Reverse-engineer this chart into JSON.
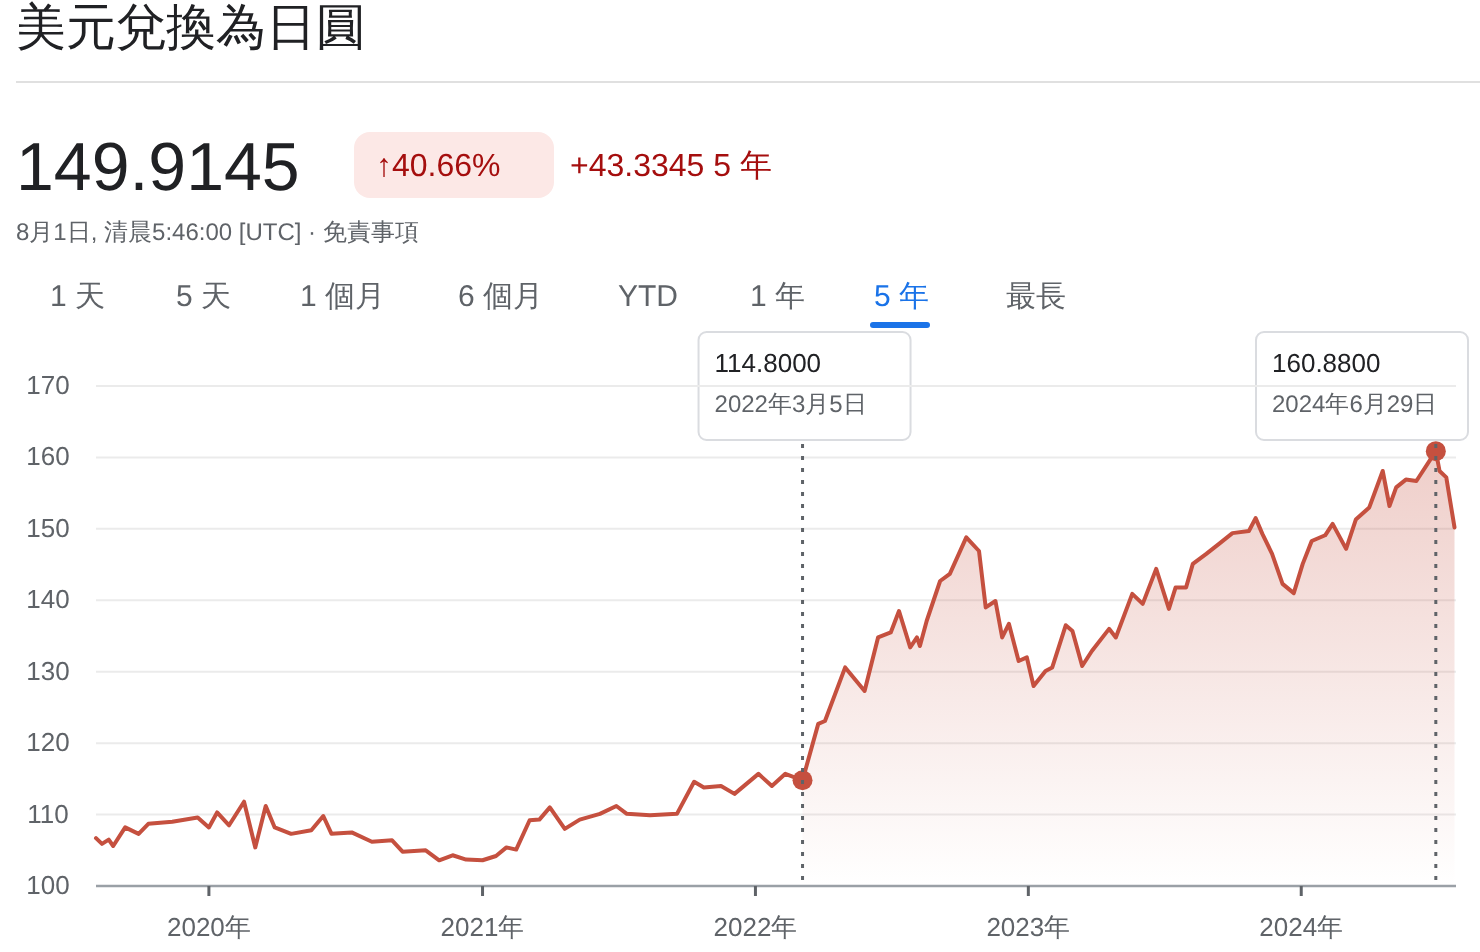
{
  "chart_data": {
    "type": "line",
    "title": "美元兌換為日圓",
    "annotations": [
      "149.9145",
      "↑40.66%",
      "+43.3345 5 年",
      "8月1日, 清晨5:46:00 [UTC] · 免責事項",
      "1 天",
      "5 天",
      "1 個月",
      "6 個月",
      "YTD",
      "1 年",
      "5 年",
      "最長",
      "114.8000",
      "2022年3月5日",
      "160.8800",
      "2024年6月29日"
    ],
    "series": [
      {
        "color": "#c5503f",
        "x": [
          "2019-08-03",
          "2019-08-11",
          "2019-08-20",
          "2019-08-26",
          "2019-09-11",
          "2019-09-29",
          "2019-10-12",
          "2019-11-13",
          "2019-12-17",
          "2020-01-01",
          "2020-01-12",
          "2020-01-28",
          "2020-02-17",
          "2020-03-03",
          "2020-03-17",
          "2020-03-29",
          "2020-04-20",
          "2020-05-17",
          "2020-06-02",
          "2020-06-13",
          "2020-07-10",
          "2020-08-06",
          "2020-09-02",
          "2020-09-16",
          "2020-10-17",
          "2020-11-04",
          "2020-11-22",
          "2020-12-10",
          "2021-01-01",
          "2021-01-19",
          "2021-02-02",
          "2021-02-15",
          "2021-03-05",
          "2021-03-18",
          "2021-04-01",
          "2021-04-21",
          "2021-05-11",
          "2021-06-07",
          "2021-06-29",
          "2021-07-13",
          "2021-08-13",
          "2021-09-18",
          "2021-10-11",
          "2021-10-24",
          "2021-11-16",
          "2021-12-04",
          "2022-01-05",
          "2022-01-23",
          "2022-02-10",
          "2022-03-05"
        ],
        "values": [
          106.7,
          105.9,
          106.5,
          105.6,
          108.2,
          107.3,
          108.7,
          109,
          109.6,
          108.2,
          110.3,
          108.5,
          111.8,
          105.4,
          111.2,
          108.2,
          107.3,
          107.8,
          109.8,
          107.3,
          107.5,
          106.2,
          106.4,
          104.8,
          105,
          103.6,
          104.3,
          103.7,
          103.6,
          104.2,
          105.4,
          105.1,
          109.2,
          109.3,
          111,
          108,
          109.3,
          110.1,
          111.2,
          110.1,
          109.9,
          110.1,
          114.6,
          113.8,
          114,
          112.9,
          115.7,
          114,
          115.7,
          114.8
        ]
      },
      {
        "type": "area",
        "color": "#c5503f",
        "x": [
          "2022-03-05",
          "2022-03-26",
          "2022-04-04",
          "2022-05-01",
          "2022-05-27",
          "2022-06-14",
          "2022-07-01",
          "2022-07-12",
          "2022-07-27",
          "2022-08-05",
          "2022-08-09",
          "2022-08-18",
          "2022-09-05",
          "2022-09-18",
          "2022-10-10",
          "2022-10-27",
          "2022-11-05",
          "2022-11-18",
          "2022-11-27",
          "2022-12-06",
          "2022-12-19",
          "2022-12-30",
          "2023-01-08",
          "2023-01-24",
          "2023-02-02",
          "2023-02-20",
          "2023-03-01",
          "2023-03-14",
          "2023-03-27",
          "2023-04-19",
          "2023-04-28",
          "2023-05-20",
          "2023-06-03",
          "2023-06-21",
          "2023-07-08",
          "2023-07-17",
          "2023-07-31",
          "2023-08-09",
          "2023-08-27",
          "2023-09-13",
          "2023-10-01",
          "2023-10-23",
          "2023-11-01",
          "2023-11-10",
          "2023-11-23",
          "2023-12-07",
          "2023-12-22",
          "2024-01-03",
          "2024-01-15",
          "2024-02-02",
          "2024-02-12",
          "2024-03-01",
          "2024-03-14",
          "2024-04-01",
          "2024-04-19",
          "2024-04-28",
          "2024-05-07",
          "2024-05-20",
          "2024-06-03",
          "2024-06-29",
          "2024-07-04",
          "2024-07-13",
          "2024-07-24"
        ],
        "values": [
          114.8,
          122.7,
          123.1,
          130.6,
          127.3,
          134.8,
          135.5,
          138.5,
          133.4,
          134.8,
          133.6,
          137.1,
          142.7,
          143.7,
          148.8,
          146.9,
          139,
          139.9,
          134.8,
          136.7,
          131.5,
          132,
          128,
          130.1,
          130.6,
          136.5,
          135.7,
          130.8,
          132.9,
          136,
          134.8,
          140.9,
          139.5,
          144.4,
          138.8,
          141.8,
          141.8,
          145.1,
          146.5,
          147.9,
          149.4,
          149.7,
          151.5,
          149.3,
          146.5,
          142.3,
          141,
          145.1,
          148.3,
          149.1,
          150.7,
          147.2,
          151.3,
          153,
          158.1,
          153.2,
          155.8,
          156.9,
          156.7,
          160.88,
          158.1,
          157.2,
          150.2
        ]
      },
      {
        "type": "scatter",
        "color": "#c5503f",
        "marker": "circle",
        "x": [
          "2022-03-05",
          "2024-06-29"
        ],
        "values": [
          114.8,
          160.88
        ]
      }
    ],
    "xlim": [
      "2019-08-03",
      "2024-07-26"
    ],
    "xticks": [
      {
        "value": "2020-01-01",
        "label": "2020年"
      },
      {
        "value": "2021-01-01",
        "label": "2021年"
      },
      {
        "value": "2022-01-01",
        "label": "2022年"
      },
      {
        "value": "2023-01-01",
        "label": "2023年"
      },
      {
        "value": "2024-01-01",
        "label": "2024年"
      }
    ],
    "ylim": [
      100,
      170
    ],
    "yticks": [
      100,
      110,
      120,
      130,
      140,
      150,
      160,
      170
    ],
    "ref_lines": [
      {
        "axis": "x",
        "value": "2022-03-05",
        "label": null,
        "color": "#5f6368",
        "line_style": "dotted"
      },
      {
        "axis": "x",
        "value": "2024-06-29",
        "label": null,
        "color": "#5f6368",
        "line_style": "dotted"
      }
    ],
    "grid": "y"
  }
}
